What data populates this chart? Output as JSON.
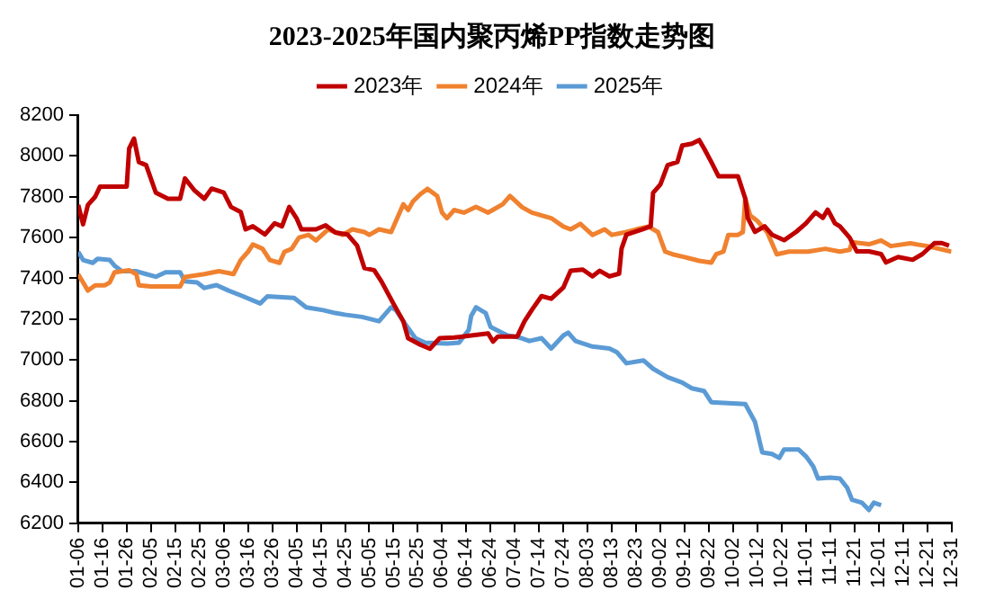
{
  "chart_data": {
    "type": "line",
    "title": "2023-2025年国内聚丙烯PP指数走势图",
    "xlim": [
      "--01-06",
      "--12-31"
    ],
    "xticks": [
      {
        "value": "--01-06",
        "label": "01-06"
      },
      {
        "value": "--01-16",
        "label": "01-16"
      },
      {
        "value": "--01-26",
        "label": "01-26"
      },
      {
        "value": "--02-05",
        "label": "02-05"
      },
      {
        "value": "--02-15",
        "label": "02-15"
      },
      {
        "value": "--02-25",
        "label": "02-25"
      },
      {
        "value": "--03-06",
        "label": "03-06"
      },
      {
        "value": "--03-16",
        "label": "03-16"
      },
      {
        "value": "--03-26",
        "label": "03-26"
      },
      {
        "value": "--04-05",
        "label": "04-05"
      },
      {
        "value": "--04-15",
        "label": "04-15"
      },
      {
        "value": "--04-25",
        "label": "04-25"
      },
      {
        "value": "--05-05",
        "label": "05-05"
      },
      {
        "value": "--05-15",
        "label": "05-15"
      },
      {
        "value": "--05-25",
        "label": "05-25"
      },
      {
        "value": "--06-04",
        "label": "06-04"
      },
      {
        "value": "--06-14",
        "label": "06-14"
      },
      {
        "value": "--06-24",
        "label": "06-24"
      },
      {
        "value": "--07-04",
        "label": "07-04"
      },
      {
        "value": "--07-14",
        "label": "07-14"
      },
      {
        "value": "--07-24",
        "label": "07-24"
      },
      {
        "value": "--08-03",
        "label": "08-03"
      },
      {
        "value": "--08-13",
        "label": "08-13"
      },
      {
        "value": "--08-23",
        "label": "08-23"
      },
      {
        "value": "--09-02",
        "label": "09-02"
      },
      {
        "value": "--09-12",
        "label": "09-12"
      },
      {
        "value": "--09-22",
        "label": "09-22"
      },
      {
        "value": "--10-02",
        "label": "10-02"
      },
      {
        "value": "--10-12",
        "label": "10-12"
      },
      {
        "value": "--10-22",
        "label": "10-22"
      },
      {
        "value": "--11-01",
        "label": "11-01"
      },
      {
        "value": "--11-11",
        "label": "11-11"
      },
      {
        "value": "--11-21",
        "label": "11-21"
      },
      {
        "value": "--12-01",
        "label": "12-01"
      },
      {
        "value": "--12-11",
        "label": "12-11"
      },
      {
        "value": "--12-21",
        "label": "12-21"
      },
      {
        "value": "--12-31",
        "label": "12-31"
      }
    ],
    "ylim": [
      6200,
      8200
    ],
    "yticks": [
      6200,
      6400,
      6600,
      6800,
      7000,
      7200,
      7400,
      7600,
      7800,
      8000,
      8200
    ],
    "grid": false,
    "legend": "top",
    "marker": "none",
    "line_style": "solid",
    "series": [
      {
        "name": "2023年",
        "color": "#c00000",
        "x": [
          "--01-06",
          "--01-08",
          "--01-10",
          "--01-13",
          "--01-15",
          "--01-26",
          "--01-27",
          "--01-29",
          "--01-31",
          "--02-03",
          "--02-07",
          "--02-12",
          "--02-17",
          "--02-19",
          "--02-23",
          "--02-27",
          "--03-01",
          "--03-06",
          "--03-09",
          "--03-13",
          "--03-15",
          "--03-18",
          "--03-23",
          "--03-27",
          "--03-30",
          "--04-02",
          "--04-05",
          "--04-07",
          "--04-13",
          "--04-17",
          "--04-21",
          "--04-26",
          "--04-30",
          "--05-03",
          "--05-07",
          "--05-10",
          "--05-15",
          "--05-19",
          "--05-21",
          "--05-26",
          "--05-30",
          "--06-03",
          "--06-09",
          "--06-16",
          "--06-23",
          "--06-25",
          "--06-27",
          "--07-05",
          "--07-08",
          "--07-11",
          "--07-15",
          "--07-19",
          "--07-24",
          "--07-27",
          "--08-01",
          "--08-05",
          "--08-08",
          "--08-12",
          "--08-16",
          "--08-17",
          "--08-19",
          "--08-26",
          "--08-29",
          "--08-30",
          "--09-02",
          "--09-05",
          "--09-09",
          "--09-11",
          "--09-15",
          "--09-18",
          "--09-20",
          "--09-23",
          "--09-26",
          "--10-04",
          "--10-07",
          "--10-08",
          "--10-11",
          "--10-15",
          "--10-18",
          "--10-23",
          "--10-28",
          "--11-01",
          "--11-05",
          "--11-08",
          "--11-10",
          "--11-13",
          "--11-15",
          "--11-19",
          "--11-22",
          "--11-27",
          "--12-02",
          "--12-04",
          "--12-09",
          "--12-15",
          "--12-19",
          "--12-24",
          "--12-27",
          "--12-30"
        ],
        "values": [
          7760,
          7665,
          7760,
          7800,
          7850,
          7850,
          8036,
          8085,
          7970,
          7955,
          7820,
          7790,
          7790,
          7890,
          7830,
          7790,
          7840,
          7820,
          7750,
          7725,
          7640,
          7655,
          7615,
          7670,
          7655,
          7750,
          7695,
          7640,
          7640,
          7660,
          7625,
          7615,
          7560,
          7450,
          7440,
          7385,
          7275,
          7190,
          7107,
          7075,
          7055,
          7107,
          7110,
          7120,
          7130,
          7090,
          7115,
          7115,
          7190,
          7245,
          7313,
          7300,
          7355,
          7437,
          7443,
          7410,
          7437,
          7410,
          7423,
          7546,
          7614,
          7642,
          7655,
          7819,
          7860,
          7955,
          7970,
          8051,
          8060,
          8078,
          8037,
          7970,
          7900,
          7900,
          7791,
          7696,
          7628,
          7655,
          7614,
          7587,
          7628,
          7669,
          7723,
          7696,
          7737,
          7669,
          7655,
          7600,
          7532,
          7532,
          7519,
          7478,
          7505,
          7491,
          7519,
          7573,
          7573,
          7560
        ]
      },
      {
        "name": "2024年",
        "color": "#f0812f",
        "x": [
          "--01-06",
          "--01-08",
          "--01-10",
          "--01-13",
          "--01-17",
          "--01-19",
          "--01-21",
          "--01-27",
          "--01-30",
          "--01-31",
          "--02-05",
          "--02-17",
          "--02-19",
          "--02-27",
          "--03-04",
          "--03-10",
          "--03-13",
          "--03-16",
          "--03-18",
          "--03-22",
          "--03-25",
          "--03-29",
          "--03-31",
          "--04-03",
          "--04-06",
          "--04-10",
          "--04-13",
          "--04-18",
          "--04-24",
          "--04-28",
          "--05-03",
          "--05-05",
          "--05-09",
          "--05-14",
          "--05-19",
          "--05-21",
          "--05-23",
          "--05-26",
          "--05-29",
          "--06-02",
          "--06-04",
          "--06-06",
          "--06-09",
          "--06-13",
          "--06-18",
          "--06-23",
          "--06-25",
          "--06-29",
          "--07-02",
          "--07-07",
          "--07-11",
          "--07-19",
          "--07-24",
          "--07-27",
          "--07-31",
          "--08-05",
          "--08-10",
          "--08-13",
          "--08-19",
          "--08-23",
          "--08-28",
          "--09-01",
          "--09-04",
          "--09-07",
          "--09-12",
          "--09-18",
          "--09-23",
          "--09-25",
          "--09-28",
          "--09-30",
          "--10-04",
          "--10-06",
          "--10-07",
          "--10-09",
          "--10-12",
          "--10-16",
          "--10-20",
          "--10-25",
          "--11-02",
          "--11-09",
          "--11-15",
          "--11-19",
          "--11-20",
          "--11-27",
          "--12-02",
          "--12-06",
          "--12-14",
          "--12-21",
          "--12-31"
        ],
        "values": [
          7420,
          7380,
          7340,
          7366,
          7366,
          7380,
          7430,
          7440,
          7420,
          7366,
          7360,
          7360,
          7407,
          7421,
          7435,
          7421,
          7490,
          7530,
          7566,
          7545,
          7490,
          7476,
          7530,
          7545,
          7600,
          7613,
          7586,
          7640,
          7613,
          7640,
          7627,
          7613,
          7640,
          7627,
          7763,
          7735,
          7777,
          7812,
          7839,
          7803,
          7722,
          7695,
          7735,
          7722,
          7750,
          7722,
          7736,
          7763,
          7804,
          7749,
          7722,
          7695,
          7654,
          7640,
          7667,
          7613,
          7640,
          7613,
          7627,
          7640,
          7654,
          7627,
          7531,
          7518,
          7504,
          7486,
          7477,
          7518,
          7531,
          7613,
          7613,
          7627,
          7791,
          7709,
          7681,
          7627,
          7518,
          7531,
          7531,
          7545,
          7531,
          7540,
          7577,
          7567,
          7586,
          7558,
          7572,
          7558,
          7531
        ]
      },
      {
        "name": "2025年",
        "color": "#5b9bd5",
        "x": [
          "--01-06",
          "--01-08",
          "--01-12",
          "--01-14",
          "--01-19",
          "--01-21",
          "--01-24",
          "--01-30",
          "--02-03",
          "--02-07",
          "--02-11",
          "--02-17",
          "--02-19",
          "--02-24",
          "--02-27",
          "--03-03",
          "--03-08",
          "--03-14",
          "--03-21",
          "--03-24",
          "--04-04",
          "--04-09",
          "--04-16",
          "--04-21",
          "--04-25",
          "--05-02",
          "--05-09",
          "--05-14",
          "--05-16",
          "--05-19",
          "--05-24",
          "--05-28",
          "--06-06",
          "--06-11",
          "--06-15",
          "--06-16",
          "--06-18",
          "--06-22",
          "--06-24",
          "--06-28",
          "--07-01",
          "--07-06",
          "--07-10",
          "--07-15",
          "--07-19",
          "--07-24",
          "--07-26",
          "--07-29",
          "--08-05",
          "--08-12",
          "--08-15",
          "--08-19",
          "--08-26",
          "--08-30",
          "--09-05",
          "--09-11",
          "--09-15",
          "--09-20",
          "--09-23",
          "--10-07",
          "--10-11",
          "--10-14",
          "--10-18",
          "--10-21",
          "--10-23",
          "--10-29",
          "--11-01",
          "--11-04",
          "--11-06",
          "--11-11",
          "--11-15",
          "--11-18",
          "--11-20",
          "--11-24",
          "--11-27",
          "--11-29",
          "--12-02"
        ],
        "values": [
          7530,
          7490,
          7476,
          7496,
          7490,
          7462,
          7435,
          7435,
          7421,
          7408,
          7430,
          7430,
          7386,
          7380,
          7353,
          7367,
          7340,
          7312,
          7277,
          7312,
          7304,
          7258,
          7244,
          7230,
          7222,
          7211,
          7190,
          7258,
          7244,
          7190,
          7107,
          7085,
          7080,
          7085,
          7148,
          7216,
          7258,
          7230,
          7162,
          7138,
          7120,
          7110,
          7093,
          7107,
          7056,
          7120,
          7134,
          7093,
          7066,
          7056,
          7039,
          6984,
          6998,
          6957,
          6916,
          6889,
          6861,
          6848,
          6793,
          6784,
          6697,
          6547,
          6539,
          6520,
          6561,
          6561,
          6528,
          6479,
          6419,
          6424,
          6419,
          6374,
          6315,
          6301,
          6265,
          6301,
          6288
        ]
      }
    ]
  }
}
